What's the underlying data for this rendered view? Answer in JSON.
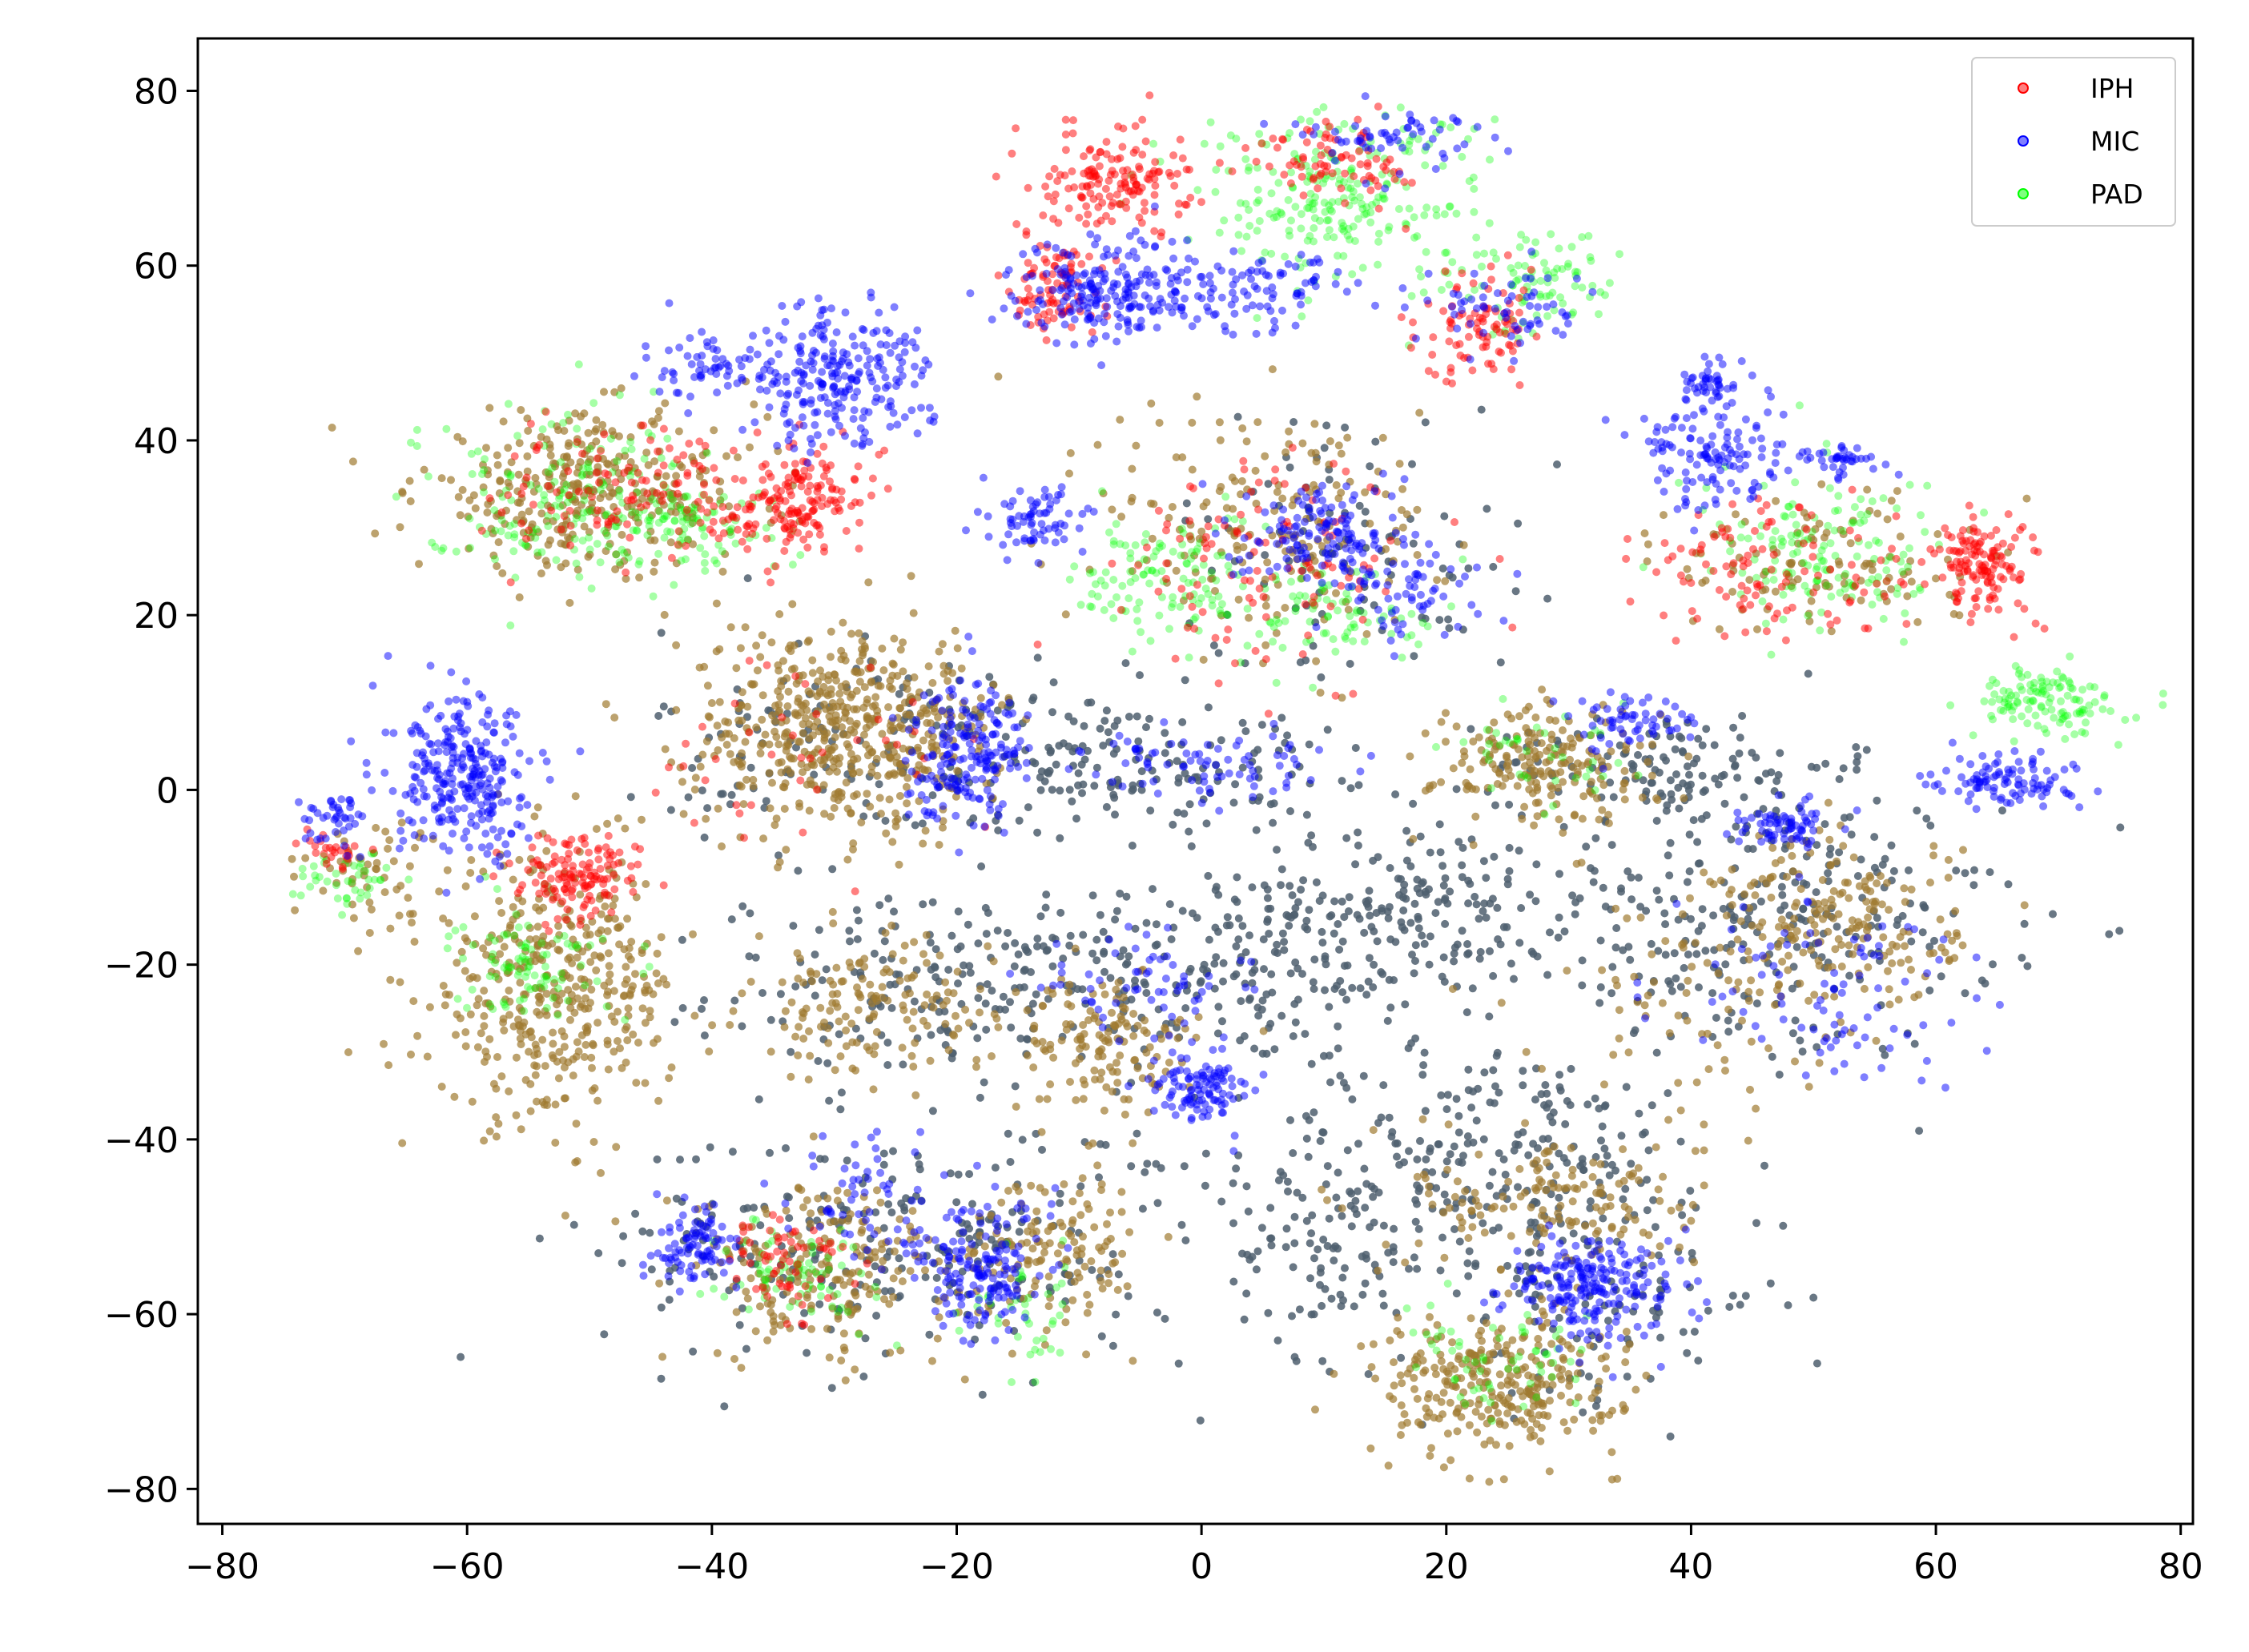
{
  "chart_data": {
    "type": "scatter",
    "title": "",
    "xlabel": "",
    "ylabel": "",
    "xlim": [
      -82,
      81
    ],
    "ylim": [
      -84,
      86
    ],
    "xticks": [
      -80,
      -60,
      -40,
      -20,
      0,
      20,
      40,
      60,
      80
    ],
    "yticks": [
      -80,
      -60,
      -40,
      -20,
      0,
      20,
      40,
      60,
      80
    ],
    "xtick_labels": [
      "−80",
      "−60",
      "−40",
      "−20",
      "0",
      "20",
      "40",
      "60",
      "80"
    ],
    "ytick_labels": [
      "−80",
      "−60",
      "−40",
      "−20",
      "0",
      "20",
      "40",
      "60",
      "80"
    ],
    "grid": false,
    "legend": {
      "placement": "top-right"
    },
    "series": [
      {
        "name": "IPH",
        "color": "#ff0000",
        "alpha": 0.5,
        "clusters": [
          {
            "cx": -33,
            "cy": 33,
            "sx": 2.5,
            "sy": 3.0,
            "n": 150
          },
          {
            "cx": -45,
            "cy": 34,
            "sx": 6.0,
            "sy": 4.0,
            "n": 130
          },
          {
            "cx": -7,
            "cy": 70,
            "sx": 3.0,
            "sy": 3.0,
            "n": 150
          },
          {
            "cx": -12,
            "cy": 58,
            "sx": 2.0,
            "sy": 3.0,
            "n": 90
          },
          {
            "cx": 11,
            "cy": 72,
            "sx": 3.0,
            "sy": 2.5,
            "n": 80
          },
          {
            "cx": 23,
            "cy": 53,
            "sx": 2.5,
            "sy": 3.0,
            "n": 90
          },
          {
            "cx": 64,
            "cy": 26,
            "sx": 2.0,
            "sy": 3.0,
            "n": 130
          },
          {
            "cx": 47,
            "cy": 25,
            "sx": 7.0,
            "sy": 4.0,
            "n": 110
          },
          {
            "cx": 6,
            "cy": 26,
            "sx": 6.0,
            "sy": 6.0,
            "n": 110
          },
          {
            "cx": -51,
            "cy": -10,
            "sx": 2.5,
            "sy": 2.5,
            "n": 130
          },
          {
            "cx": -71,
            "cy": -7,
            "sx": 1.5,
            "sy": 1.5,
            "n": 25
          },
          {
            "cx": -34,
            "cy": -54,
            "sx": 2.5,
            "sy": 3.0,
            "n": 60
          },
          {
            "cx": -33,
            "cy": 6,
            "sx": 6.0,
            "sy": 6.0,
            "n": 40
          }
        ]
      },
      {
        "name": "MIC",
        "color": "#0000ff",
        "alpha": 0.5,
        "clusters": [
          {
            "cx": -30,
            "cy": 47,
            "sx": 4.0,
            "sy": 4.0,
            "n": 240
          },
          {
            "cx": -40,
            "cy": 48,
            "sx": 3.0,
            "sy": 2.0,
            "n": 60
          },
          {
            "cx": -60,
            "cy": 1,
            "sx": 3.0,
            "sy": 4.5,
            "n": 280
          },
          {
            "cx": -71,
            "cy": -4,
            "sx": 1.2,
            "sy": 1.5,
            "n": 40
          },
          {
            "cx": -19,
            "cy": 5,
            "sx": 2.5,
            "sy": 4.0,
            "n": 190
          },
          {
            "cx": 0,
            "cy": 3,
            "sx": 5.0,
            "sy": 2.0,
            "n": 80
          },
          {
            "cx": -7,
            "cy": 57,
            "sx": 4.0,
            "sy": 3.0,
            "n": 220
          },
          {
            "cx": 5,
            "cy": 57,
            "sx": 4.0,
            "sy": 2.0,
            "n": 80
          },
          {
            "cx": 15,
            "cy": 75,
            "sx": 4.0,
            "sy": 2.0,
            "n": 60
          },
          {
            "cx": 25,
            "cy": 55,
            "sx": 3.0,
            "sy": 2.5,
            "n": 60
          },
          {
            "cx": -13,
            "cy": 31,
            "sx": 2.0,
            "sy": 2.0,
            "n": 70
          },
          {
            "cx": 10,
            "cy": 29,
            "sx": 3.5,
            "sy": 3.0,
            "n": 140
          },
          {
            "cx": 17,
            "cy": 23,
            "sx": 3.0,
            "sy": 2.5,
            "n": 60
          },
          {
            "cx": 42,
            "cy": 38,
            "sx": 3.0,
            "sy": 3.0,
            "n": 120
          },
          {
            "cx": 42,
            "cy": 46,
            "sx": 1.5,
            "sy": 1.5,
            "n": 50
          },
          {
            "cx": 52,
            "cy": 38,
            "sx": 2.0,
            "sy": 1.0,
            "n": 40
          },
          {
            "cx": 66,
            "cy": 1,
            "sx": 3.0,
            "sy": 1.5,
            "n": 100
          },
          {
            "cx": 35,
            "cy": 8,
            "sx": 2.0,
            "sy": 1.5,
            "n": 60
          },
          {
            "cx": 48,
            "cy": -4,
            "sx": 2.0,
            "sy": 1.5,
            "n": 70
          },
          {
            "cx": 0,
            "cy": -34,
            "sx": 2.0,
            "sy": 2.0,
            "n": 110
          },
          {
            "cx": -5,
            "cy": -22,
            "sx": 4.0,
            "sy": 3.0,
            "n": 60
          },
          {
            "cx": 32,
            "cy": -57,
            "sx": 3.5,
            "sy": 3.0,
            "n": 220
          },
          {
            "cx": -41,
            "cy": -52,
            "sx": 1.8,
            "sy": 2.0,
            "n": 90
          },
          {
            "cx": -18,
            "cy": -55,
            "sx": 2.5,
            "sy": 4.0,
            "n": 160
          },
          {
            "cx": 50,
            "cy": -23,
            "sx": 6.0,
            "sy": 5.0,
            "n": 90
          },
          {
            "cx": -27,
            "cy": -48,
            "sx": 3.0,
            "sy": 4.0,
            "n": 60
          }
        ]
      },
      {
        "name": "PAD",
        "color": "#00ff00",
        "alpha": 0.35,
        "clusters": [
          {
            "cx": -52,
            "cy": 34,
            "sx": 6.0,
            "sy": 5.0,
            "n": 170
          },
          {
            "cx": -42,
            "cy": 30,
            "sx": 4.0,
            "sy": 2.5,
            "n": 80
          },
          {
            "cx": 11,
            "cy": 68,
            "sx": 6.0,
            "sy": 5.0,
            "n": 240
          },
          {
            "cx": 27,
            "cy": 58,
            "sx": 3.5,
            "sy": 3.0,
            "n": 90
          },
          {
            "cx": -3,
            "cy": 24,
            "sx": 3.5,
            "sy": 4.0,
            "n": 120
          },
          {
            "cx": 12,
            "cy": 20,
            "sx": 4.0,
            "sy": 3.0,
            "n": 80
          },
          {
            "cx": 51,
            "cy": 27,
            "sx": 5.0,
            "sy": 4.5,
            "n": 150
          },
          {
            "cx": 69,
            "cy": 10,
            "sx": 3.0,
            "sy": 2.0,
            "n": 120
          },
          {
            "cx": -55,
            "cy": -20,
            "sx": 3.0,
            "sy": 3.0,
            "n": 90
          },
          {
            "cx": -70,
            "cy": -10,
            "sx": 2.0,
            "sy": 1.5,
            "n": 40
          },
          {
            "cx": -33,
            "cy": -55,
            "sx": 3.0,
            "sy": 3.0,
            "n": 70
          },
          {
            "cx": -15,
            "cy": -60,
            "sx": 3.0,
            "sy": 3.0,
            "n": 40
          },
          {
            "cx": 25,
            "cy": -66,
            "sx": 4.0,
            "sy": 3.0,
            "n": 60
          },
          {
            "cx": 28,
            "cy": 3,
            "sx": 4.0,
            "sy": 2.5,
            "n": 40
          }
        ]
      },
      {
        "name": "",
        "color": "#a07a30",
        "alpha": 0.7,
        "clusters": [
          {
            "cx": -31,
            "cy": 7,
            "sx": 5.5,
            "sy": 6.0,
            "n": 420
          },
          {
            "cx": -23,
            "cy": 6,
            "sx": 3.0,
            "sy": 5.0,
            "n": 100
          },
          {
            "cx": -50,
            "cy": 34,
            "sx": 7.0,
            "sy": 4.5,
            "n": 340
          },
          {
            "cx": -53,
            "cy": -23,
            "sx": 5.0,
            "sy": 7.5,
            "n": 420
          },
          {
            "cx": -68,
            "cy": -9,
            "sx": 2.5,
            "sy": 3.0,
            "n": 50
          },
          {
            "cx": 28,
            "cy": 3,
            "sx": 4.5,
            "sy": 3.5,
            "n": 200
          },
          {
            "cx": 52,
            "cy": -15,
            "sx": 5.0,
            "sy": 5.0,
            "n": 190
          },
          {
            "cx": -27,
            "cy": -25,
            "sx": 5.0,
            "sy": 4.0,
            "n": 150
          },
          {
            "cx": -8,
            "cy": -29,
            "sx": 4.0,
            "sy": 4.0,
            "n": 140
          },
          {
            "cx": -31,
            "cy": -55,
            "sx": 5.0,
            "sy": 5.0,
            "n": 200
          },
          {
            "cx": -12,
            "cy": -52,
            "sx": 4.0,
            "sy": 4.5,
            "n": 140
          },
          {
            "cx": 24,
            "cy": -68,
            "sx": 5.0,
            "sy": 4.0,
            "n": 300
          },
          {
            "cx": 29,
            "cy": -47,
            "sx": 6.0,
            "sy": 4.0,
            "n": 150
          },
          {
            "cx": 6,
            "cy": 30,
            "sx": 7.0,
            "sy": 8.0,
            "n": 180
          },
          {
            "cx": 51,
            "cy": 26,
            "sx": 6.0,
            "sy": 4.0,
            "n": 110
          },
          {
            "cx": 40,
            "cy": -23,
            "sx": 7.0,
            "sy": 6.0,
            "n": 80
          }
        ]
      },
      {
        "name": "",
        "color": "#4f5f6f",
        "alpha": 0.85,
        "clusters": [
          {
            "cx": 2,
            "cy": -20,
            "sx": 11.0,
            "sy": 6.0,
            "n": 260
          },
          {
            "cx": 18,
            "cy": -13,
            "sx": 6.0,
            "sy": 4.5,
            "n": 130
          },
          {
            "cx": -22,
            "cy": -23,
            "sx": 9.0,
            "sy": 5.0,
            "n": 150
          },
          {
            "cx": 45,
            "cy": -15,
            "sx": 10.0,
            "sy": 8.0,
            "n": 300
          },
          {
            "cx": 38,
            "cy": 3,
            "sx": 7.0,
            "sy": 3.0,
            "n": 120
          },
          {
            "cx": 23,
            "cy": -42,
            "sx": 10.0,
            "sy": 6.0,
            "n": 240
          },
          {
            "cx": 11,
            "cy": -53,
            "sx": 4.0,
            "sy": 6.0,
            "n": 90
          },
          {
            "cx": 32,
            "cy": -58,
            "sx": 8.0,
            "sy": 6.0,
            "n": 110
          },
          {
            "cx": -25,
            "cy": -52,
            "sx": 12.0,
            "sy": 7.0,
            "n": 260
          },
          {
            "cx": -7,
            "cy": 3,
            "sx": 9.0,
            "sy": 4.0,
            "n": 180
          },
          {
            "cx": -28,
            "cy": 5,
            "sx": 8.0,
            "sy": 7.0,
            "n": 130
          },
          {
            "cx": 12,
            "cy": 28,
            "sx": 7.0,
            "sy": 8.0,
            "n": 100
          }
        ]
      }
    ]
  }
}
